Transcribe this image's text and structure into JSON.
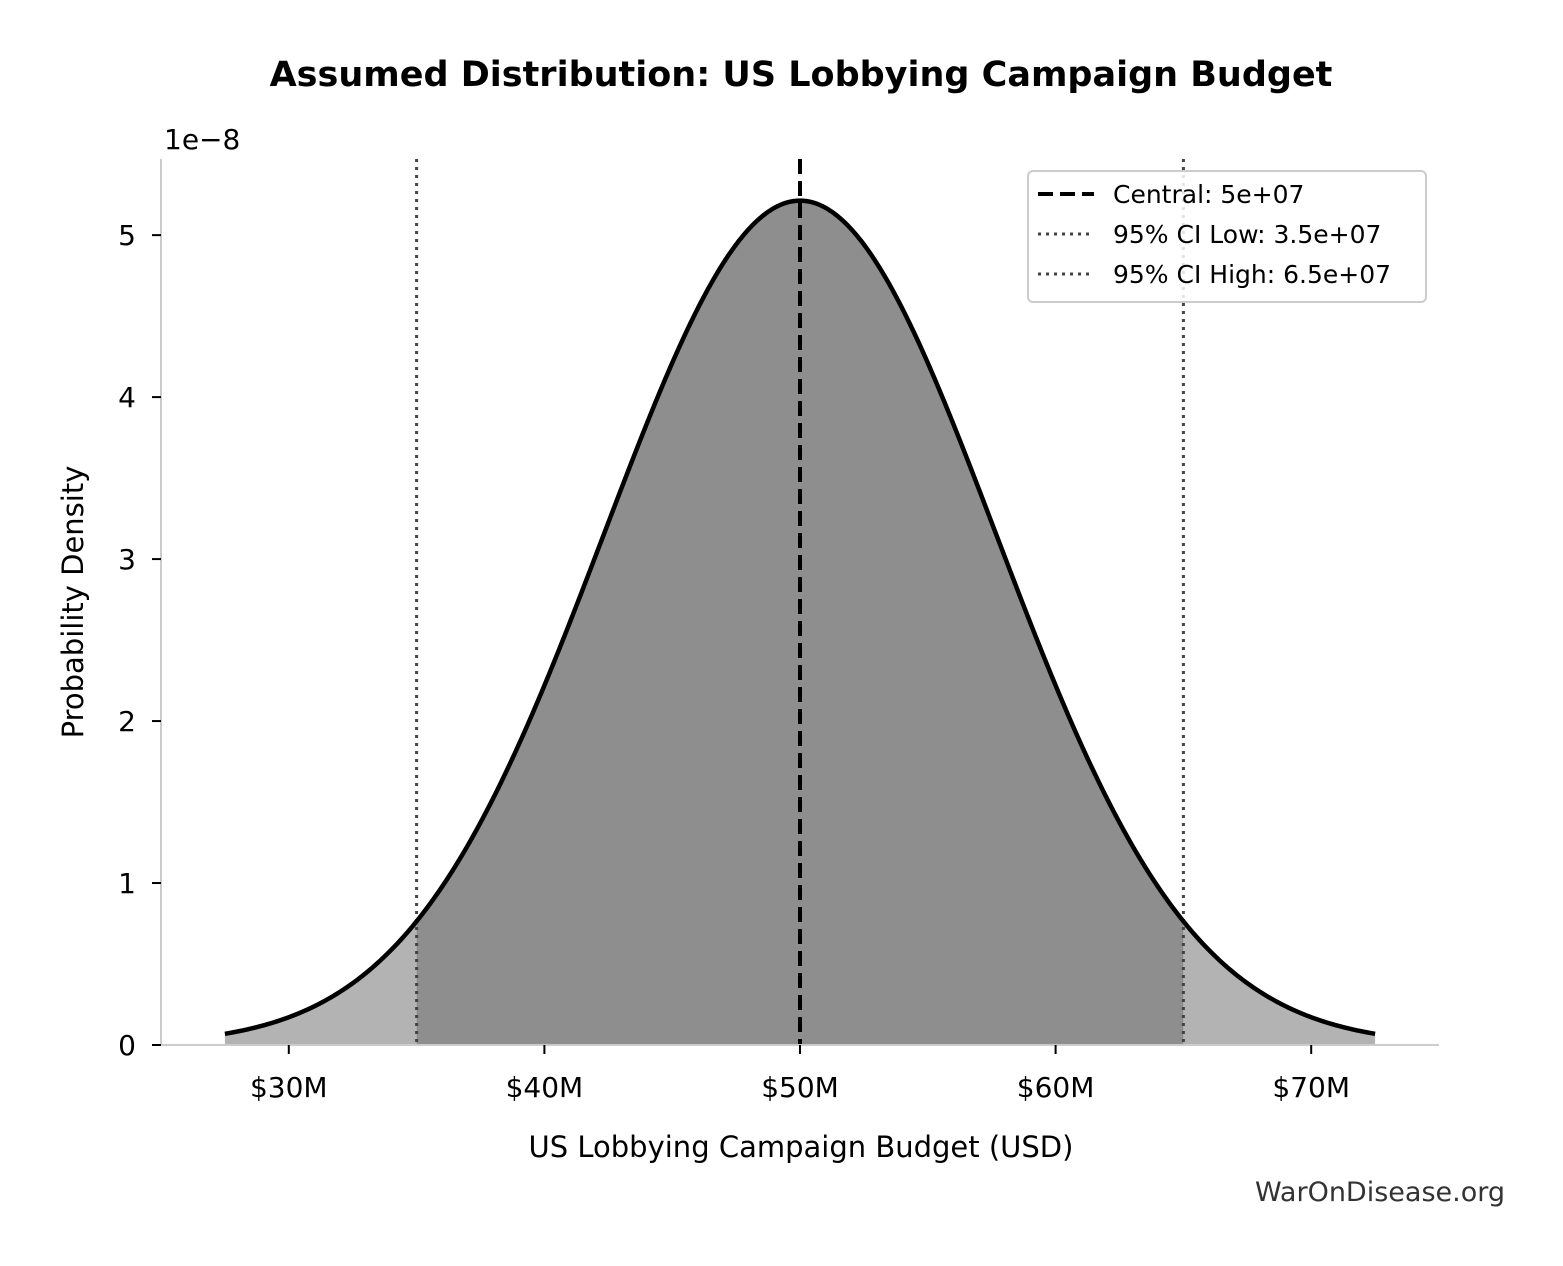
{
  "chart_data": {
    "type": "area",
    "title": "Assumed Distribution: US Lobbying Campaign Budget",
    "xlabel": "US Lobbying Campaign Budget (USD)",
    "ylabel": "Probability Density",
    "y_scale_label": "1e−8",
    "xlim": [
      25000000,
      75000000
    ],
    "ylim": [
      0,
      5.47e-08
    ],
    "x_ticks": [
      30000000,
      40000000,
      50000000,
      60000000,
      70000000
    ],
    "x_tick_labels": [
      "$30M",
      "$40M",
      "$50M",
      "$60M",
      "$70M"
    ],
    "y_ticks": [
      0,
      1e-08,
      2e-08,
      3e-08,
      4e-08,
      5e-08
    ],
    "y_tick_labels": [
      "0",
      "1",
      "2",
      "3",
      "4",
      "5"
    ],
    "distribution": {
      "kind": "normal",
      "mean": 50000000,
      "std": 7653000,
      "x_range": [
        27500000,
        72500000
      ],
      "peak_density": 5.213e-08
    },
    "reference_lines": [
      {
        "name": "Central: 5e+07",
        "x": 50000000,
        "style": "dashed",
        "color": "#000000"
      },
      {
        "name": "95% CI Low: 3.5e+07",
        "x": 35000000,
        "style": "dotted",
        "color": "#444444"
      },
      {
        "name": "95% CI High: 6.5e+07",
        "x": 65000000,
        "style": "dotted",
        "color": "#444444"
      }
    ],
    "fill_colors": {
      "ci_region": "#8e8e8e",
      "tails": "#b3b3b3"
    },
    "curve_color": "#000000",
    "legend_position": "top-right",
    "grid": false
  },
  "credit": "WarOnDisease.org"
}
